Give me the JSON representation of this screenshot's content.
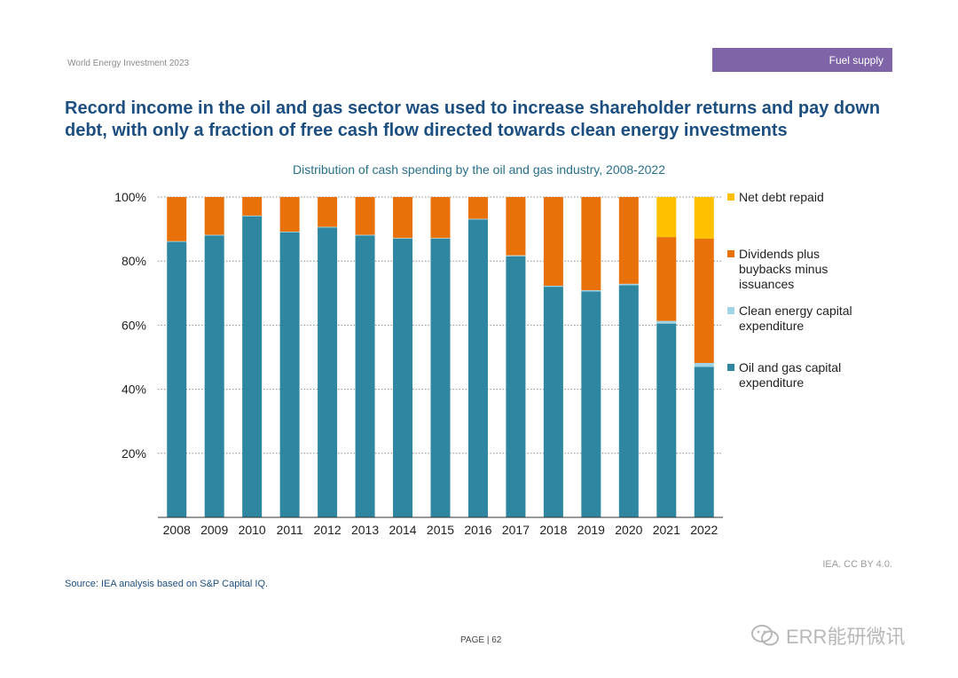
{
  "header": {
    "report_name": "World Energy Investment 2023",
    "section_tab": "Fuel supply"
  },
  "headline": "Record income in the oil and gas sector was used to increase shareholder returns and pay down debt, with only a fraction of free cash flow directed towards clean energy investments",
  "chart_data": {
    "type": "bar",
    "stacked": true,
    "title": "Distribution of cash spending by the oil and gas industry, 2008-2022",
    "categories": [
      "2008",
      "2009",
      "2010",
      "2011",
      "2012",
      "2013",
      "2014",
      "2015",
      "2016",
      "2017",
      "2018",
      "2019",
      "2020",
      "2021",
      "2022"
    ],
    "y_ticks": [
      "20%",
      "40%",
      "60%",
      "80%",
      "100%"
    ],
    "ylim": [
      0,
      100
    ],
    "grid": true,
    "legend_position": "right",
    "series": [
      {
        "name": "Oil and gas capital expenditure",
        "color": "#2e86a0",
        "values": [
          86,
          88,
          94,
          89,
          90.5,
          88,
          87,
          87,
          93,
          81.5,
          72,
          70.5,
          72.5,
          60.5,
          47
        ]
      },
      {
        "name": "Clean energy capital expenditure",
        "color": "#9fd4e6",
        "values": [
          0.2,
          0.2,
          0.2,
          0.2,
          0.2,
          0.2,
          0.2,
          0.2,
          0.2,
          0.3,
          0.3,
          0.4,
          0.4,
          0.8,
          1.2
        ]
      },
      {
        "name": "Dividends plus buybacks minus issuances",
        "color": "#e8710a",
        "values": [
          13.8,
          11.8,
          5.8,
          10.8,
          9.3,
          11.8,
          12.8,
          12.8,
          6.8,
          18.2,
          27.7,
          29.1,
          27.1,
          26.2,
          38.8
        ]
      },
      {
        "name": "Net debt repaid",
        "color": "#ffc000",
        "values": [
          0,
          0,
          0,
          0,
          0,
          0,
          0,
          0,
          0,
          0,
          0,
          0,
          0,
          12.5,
          13
        ]
      }
    ],
    "legend_order": [
      3,
      2,
      1,
      0
    ]
  },
  "footer": {
    "credit": "IEA. CC BY 4.0.",
    "source": "Source: IEA analysis based on S&P Capital IQ.",
    "page_label": "PAGE | 62",
    "watermark": "ERR能研微讯"
  }
}
